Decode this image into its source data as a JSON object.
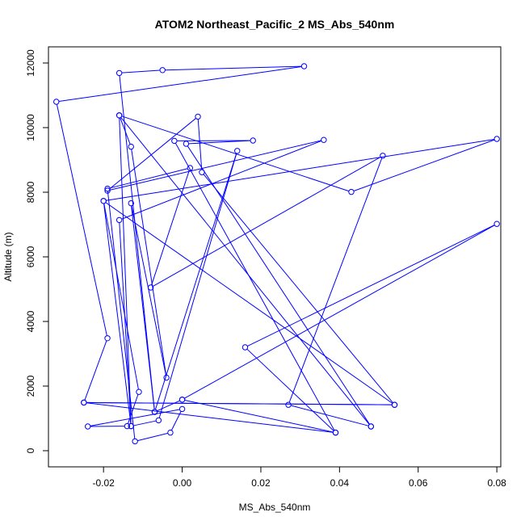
{
  "chart_data": {
    "type": "line",
    "title": "ATOM2 Northeast_Pacific_2 MS_Abs_540nm",
    "xlabel": "MS_Abs_540nm",
    "ylabel": "Altitude (m)",
    "xlim": [
      -0.034,
      0.081
    ],
    "ylim": [
      -500,
      12500
    ],
    "x_ticks": [
      -0.02,
      0.0,
      0.02,
      0.04,
      0.06,
      0.08
    ],
    "x_tick_labels": [
      "-0.02",
      "0.00",
      "0.02",
      "0.04",
      "0.06",
      "0.08"
    ],
    "y_ticks": [
      0,
      2000,
      4000,
      6000,
      8000,
      10000,
      12000
    ],
    "y_tick_labels": [
      "0",
      "2000",
      "4000",
      "6000",
      "8000",
      "10000",
      "12000"
    ],
    "grid": false,
    "series_color": "#0000ff",
    "points": [
      {
        "x": 0.0,
        "y": 1580
      },
      {
        "x": 0.08,
        "y": 7020
      },
      {
        "x": 0.016,
        "y": 3200
      },
      {
        "x": 0.039,
        "y": 560
      },
      {
        "x": -0.002,
        "y": 9590
      },
      {
        "x": 0.018,
        "y": 9600
      },
      {
        "x": 0.001,
        "y": 9500
      },
      {
        "x": 0.048,
        "y": 750
      },
      {
        "x": -0.016,
        "y": 10380
      },
      {
        "x": -0.013,
        "y": 760
      },
      {
        "x": -0.016,
        "y": 7140
      },
      {
        "x": 0.036,
        "y": 9620
      },
      {
        "x": -0.019,
        "y": 8050
      },
      {
        "x": 0.004,
        "y": 10340
      },
      {
        "x": 0.005,
        "y": 8620
      },
      {
        "x": 0.054,
        "y": 1420
      },
      {
        "x": -0.025,
        "y": 1490
      },
      {
        "x": 0.039,
        "y": 560
      },
      {
        "x": 0.0,
        "y": 1580
      },
      {
        "x": -0.007,
        "y": 1200
      },
      {
        "x": -0.016,
        "y": 11690
      },
      {
        "x": -0.005,
        "y": 11780
      },
      {
        "x": 0.031,
        "y": 11900
      },
      {
        "x": -0.032,
        "y": 10800
      },
      {
        "x": -0.019,
        "y": 3480
      },
      {
        "x": -0.025,
        "y": 1490
      },
      {
        "x": 0.054,
        "y": 1420
      },
      {
        "x": -0.02,
        "y": 7730
      },
      {
        "x": 0.08,
        "y": 9650
      },
      {
        "x": 0.043,
        "y": 8010
      },
      {
        "x": -0.016,
        "y": 10380
      },
      {
        "x": -0.013,
        "y": 9410
      },
      {
        "x": -0.004,
        "y": 2260
      },
      {
        "x": -0.013,
        "y": 7660
      },
      {
        "x": -0.007,
        "y": 1200
      },
      {
        "x": 0.014,
        "y": 9280
      },
      {
        "x": -0.006,
        "y": 940
      },
      {
        "x": -0.013,
        "y": 760
      },
      {
        "x": -0.02,
        "y": 7730
      },
      {
        "x": -0.011,
        "y": 1820
      },
      {
        "x": -0.014,
        "y": 760
      },
      {
        "x": -0.024,
        "y": 750
      },
      {
        "x": 0.0,
        "y": 1290
      },
      {
        "x": -0.003,
        "y": 560
      },
      {
        "x": -0.012,
        "y": 290
      },
      {
        "x": -0.019,
        "y": 8110
      },
      {
        "x": 0.002,
        "y": 8750
      },
      {
        "x": -0.008,
        "y": 5050
      },
      {
        "x": 0.051,
        "y": 9130
      },
      {
        "x": 0.027,
        "y": 1420
      },
      {
        "x": 0.048,
        "y": 750
      }
    ]
  }
}
